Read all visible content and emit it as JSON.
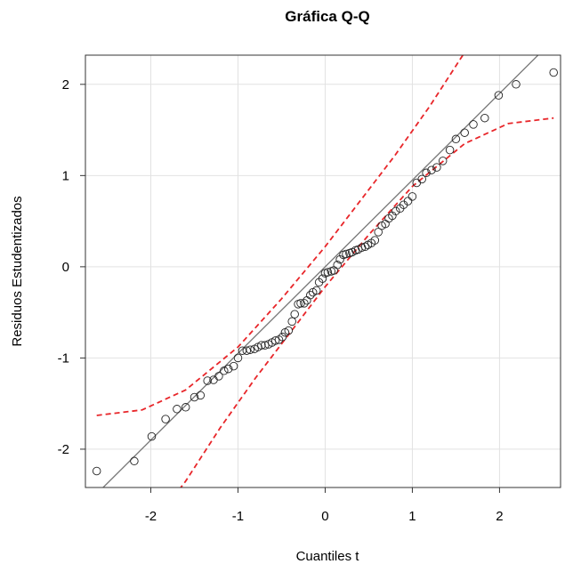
{
  "chart_data": {
    "type": "scatter",
    "title": "Gráfica Q-Q",
    "xlabel": "Cuantiles t",
    "ylabel": "Residuos Estudentizados",
    "xlim": [
      -2.75,
      2.7
    ],
    "ylim": [
      -2.42,
      2.32
    ],
    "xticks": [
      -2,
      -1,
      0,
      1,
      2
    ],
    "yticks": [
      -2,
      -1,
      0,
      1,
      2
    ],
    "grid": true,
    "colors": {
      "points": "#222222",
      "reference_line": "#777777",
      "confidence_band": "#e8262a"
    },
    "series": [
      {
        "points": [
          [
            -2.62,
            -2.24
          ],
          [
            -2.19,
            -2.13
          ],
          [
            -1.99,
            -1.86
          ],
          [
            -1.83,
            -1.67
          ],
          [
            -1.7,
            -1.56
          ],
          [
            -1.6,
            -1.54
          ],
          [
            -1.5,
            -1.43
          ],
          [
            -1.43,
            -1.41
          ],
          [
            -1.35,
            -1.25
          ],
          [
            -1.28,
            -1.24
          ],
          [
            -1.22,
            -1.2
          ],
          [
            -1.16,
            -1.14
          ],
          [
            -1.11,
            -1.12
          ],
          [
            -1.05,
            -1.09
          ],
          [
            -1.0,
            -1.0
          ],
          [
            -0.95,
            -0.92
          ],
          [
            -0.9,
            -0.92
          ],
          [
            -0.86,
            -0.91
          ],
          [
            -0.81,
            -0.9
          ],
          [
            -0.77,
            -0.88
          ],
          [
            -0.73,
            -0.86
          ],
          [
            -0.69,
            -0.86
          ],
          [
            -0.65,
            -0.85
          ],
          [
            -0.61,
            -0.83
          ],
          [
            -0.57,
            -0.81
          ],
          [
            -0.53,
            -0.8
          ],
          [
            -0.49,
            -0.77
          ],
          [
            -0.46,
            -0.72
          ],
          [
            -0.42,
            -0.7
          ],
          [
            -0.38,
            -0.6
          ],
          [
            -0.35,
            -0.52
          ],
          [
            -0.31,
            -0.41
          ],
          [
            -0.28,
            -0.4
          ],
          [
            -0.24,
            -0.4
          ],
          [
            -0.21,
            -0.37
          ],
          [
            -0.17,
            -0.31
          ],
          [
            -0.14,
            -0.28
          ],
          [
            -0.1,
            -0.26
          ],
          [
            -0.07,
            -0.17
          ],
          [
            -0.03,
            -0.13
          ],
          [
            0.0,
            -0.07
          ],
          [
            0.03,
            -0.06
          ],
          [
            0.07,
            -0.05
          ],
          [
            0.1,
            -0.04
          ],
          [
            0.14,
            0.02
          ],
          [
            0.17,
            0.08
          ],
          [
            0.21,
            0.13
          ],
          [
            0.24,
            0.14
          ],
          [
            0.28,
            0.15
          ],
          [
            0.31,
            0.16
          ],
          [
            0.35,
            0.18
          ],
          [
            0.38,
            0.19
          ],
          [
            0.42,
            0.21
          ],
          [
            0.46,
            0.22
          ],
          [
            0.49,
            0.24
          ],
          [
            0.53,
            0.26
          ],
          [
            0.57,
            0.29
          ],
          [
            0.61,
            0.38
          ],
          [
            0.65,
            0.45
          ],
          [
            0.69,
            0.47
          ],
          [
            0.73,
            0.53
          ],
          [
            0.77,
            0.56
          ],
          [
            0.81,
            0.61
          ],
          [
            0.86,
            0.64
          ],
          [
            0.9,
            0.68
          ],
          [
            0.95,
            0.72
          ],
          [
            1.0,
            0.77
          ],
          [
            1.05,
            0.92
          ],
          [
            1.11,
            0.96
          ],
          [
            1.16,
            1.03
          ],
          [
            1.22,
            1.06
          ],
          [
            1.28,
            1.09
          ],
          [
            1.35,
            1.16
          ],
          [
            1.43,
            1.28
          ],
          [
            1.5,
            1.4
          ],
          [
            1.6,
            1.47
          ],
          [
            1.7,
            1.56
          ],
          [
            1.83,
            1.63
          ],
          [
            1.99,
            1.88
          ],
          [
            2.19,
            2.0
          ],
          [
            2.62,
            2.13
          ]
        ]
      }
    ],
    "reference_line": {
      "intercept": 0.0,
      "slope": 0.95
    },
    "confidence_band": {
      "upper": [
        [
          -2.62,
          -1.63
        ],
        [
          -2.1,
          -1.57
        ],
        [
          -1.6,
          -1.35
        ],
        [
          -1.0,
          -0.88
        ],
        [
          -0.5,
          -0.35
        ],
        [
          0.0,
          0.22
        ],
        [
          0.4,
          0.72
        ],
        [
          0.8,
          1.22
        ],
        [
          1.2,
          1.76
        ],
        [
          1.6,
          2.35
        ],
        [
          1.8,
          2.6
        ]
      ],
      "lower": [
        [
          -1.8,
          -2.6
        ],
        [
          -1.6,
          -2.35
        ],
        [
          -1.2,
          -1.76
        ],
        [
          -0.8,
          -1.22
        ],
        [
          -0.4,
          -0.72
        ],
        [
          0.0,
          -0.22
        ],
        [
          0.5,
          0.35
        ],
        [
          1.0,
          0.88
        ],
        [
          1.6,
          1.35
        ],
        [
          2.1,
          1.57
        ],
        [
          2.62,
          1.63
        ]
      ]
    }
  }
}
